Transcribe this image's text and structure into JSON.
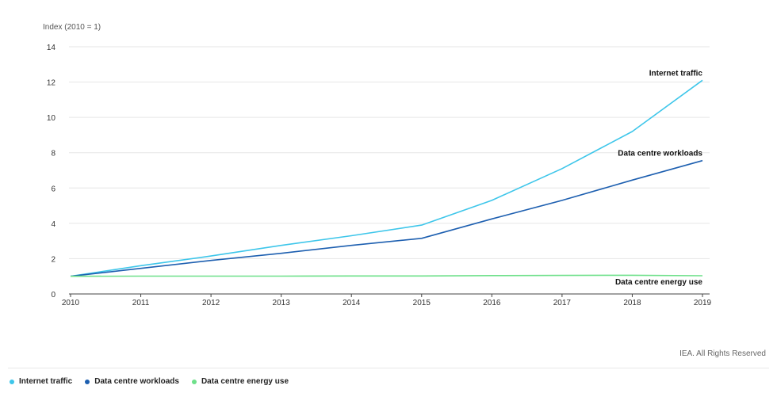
{
  "chart_data": {
    "type": "line",
    "ylabel": "Index (2010 = 1)",
    "xlabel": "",
    "x": [
      2010,
      2011,
      2012,
      2013,
      2014,
      2015,
      2016,
      2017,
      2018,
      2019
    ],
    "ylim": [
      0,
      14
    ],
    "yticks": [
      0,
      2,
      4,
      6,
      8,
      10,
      12,
      14
    ],
    "grid": true,
    "legend": "bottom-left",
    "series": [
      {
        "name": "Internet traffic",
        "color": "#3ec6ea",
        "values": [
          1,
          1.6,
          2.15,
          2.75,
          3.3,
          3.9,
          5.3,
          7.1,
          9.2,
          12.1
        ]
      },
      {
        "name": "Data centre workloads",
        "color": "#1d5fb0",
        "values": [
          1,
          1.45,
          1.9,
          2.3,
          2.75,
          3.15,
          4.25,
          5.3,
          6.45,
          7.55
        ]
      },
      {
        "name": "Data centre energy use",
        "color": "#6ee08a",
        "values": [
          1,
          1.01,
          1.01,
          1.01,
          1.02,
          1.02,
          1.04,
          1.05,
          1.06,
          1.03
        ]
      }
    ]
  },
  "credit": "IEA. All Rights Reserved"
}
